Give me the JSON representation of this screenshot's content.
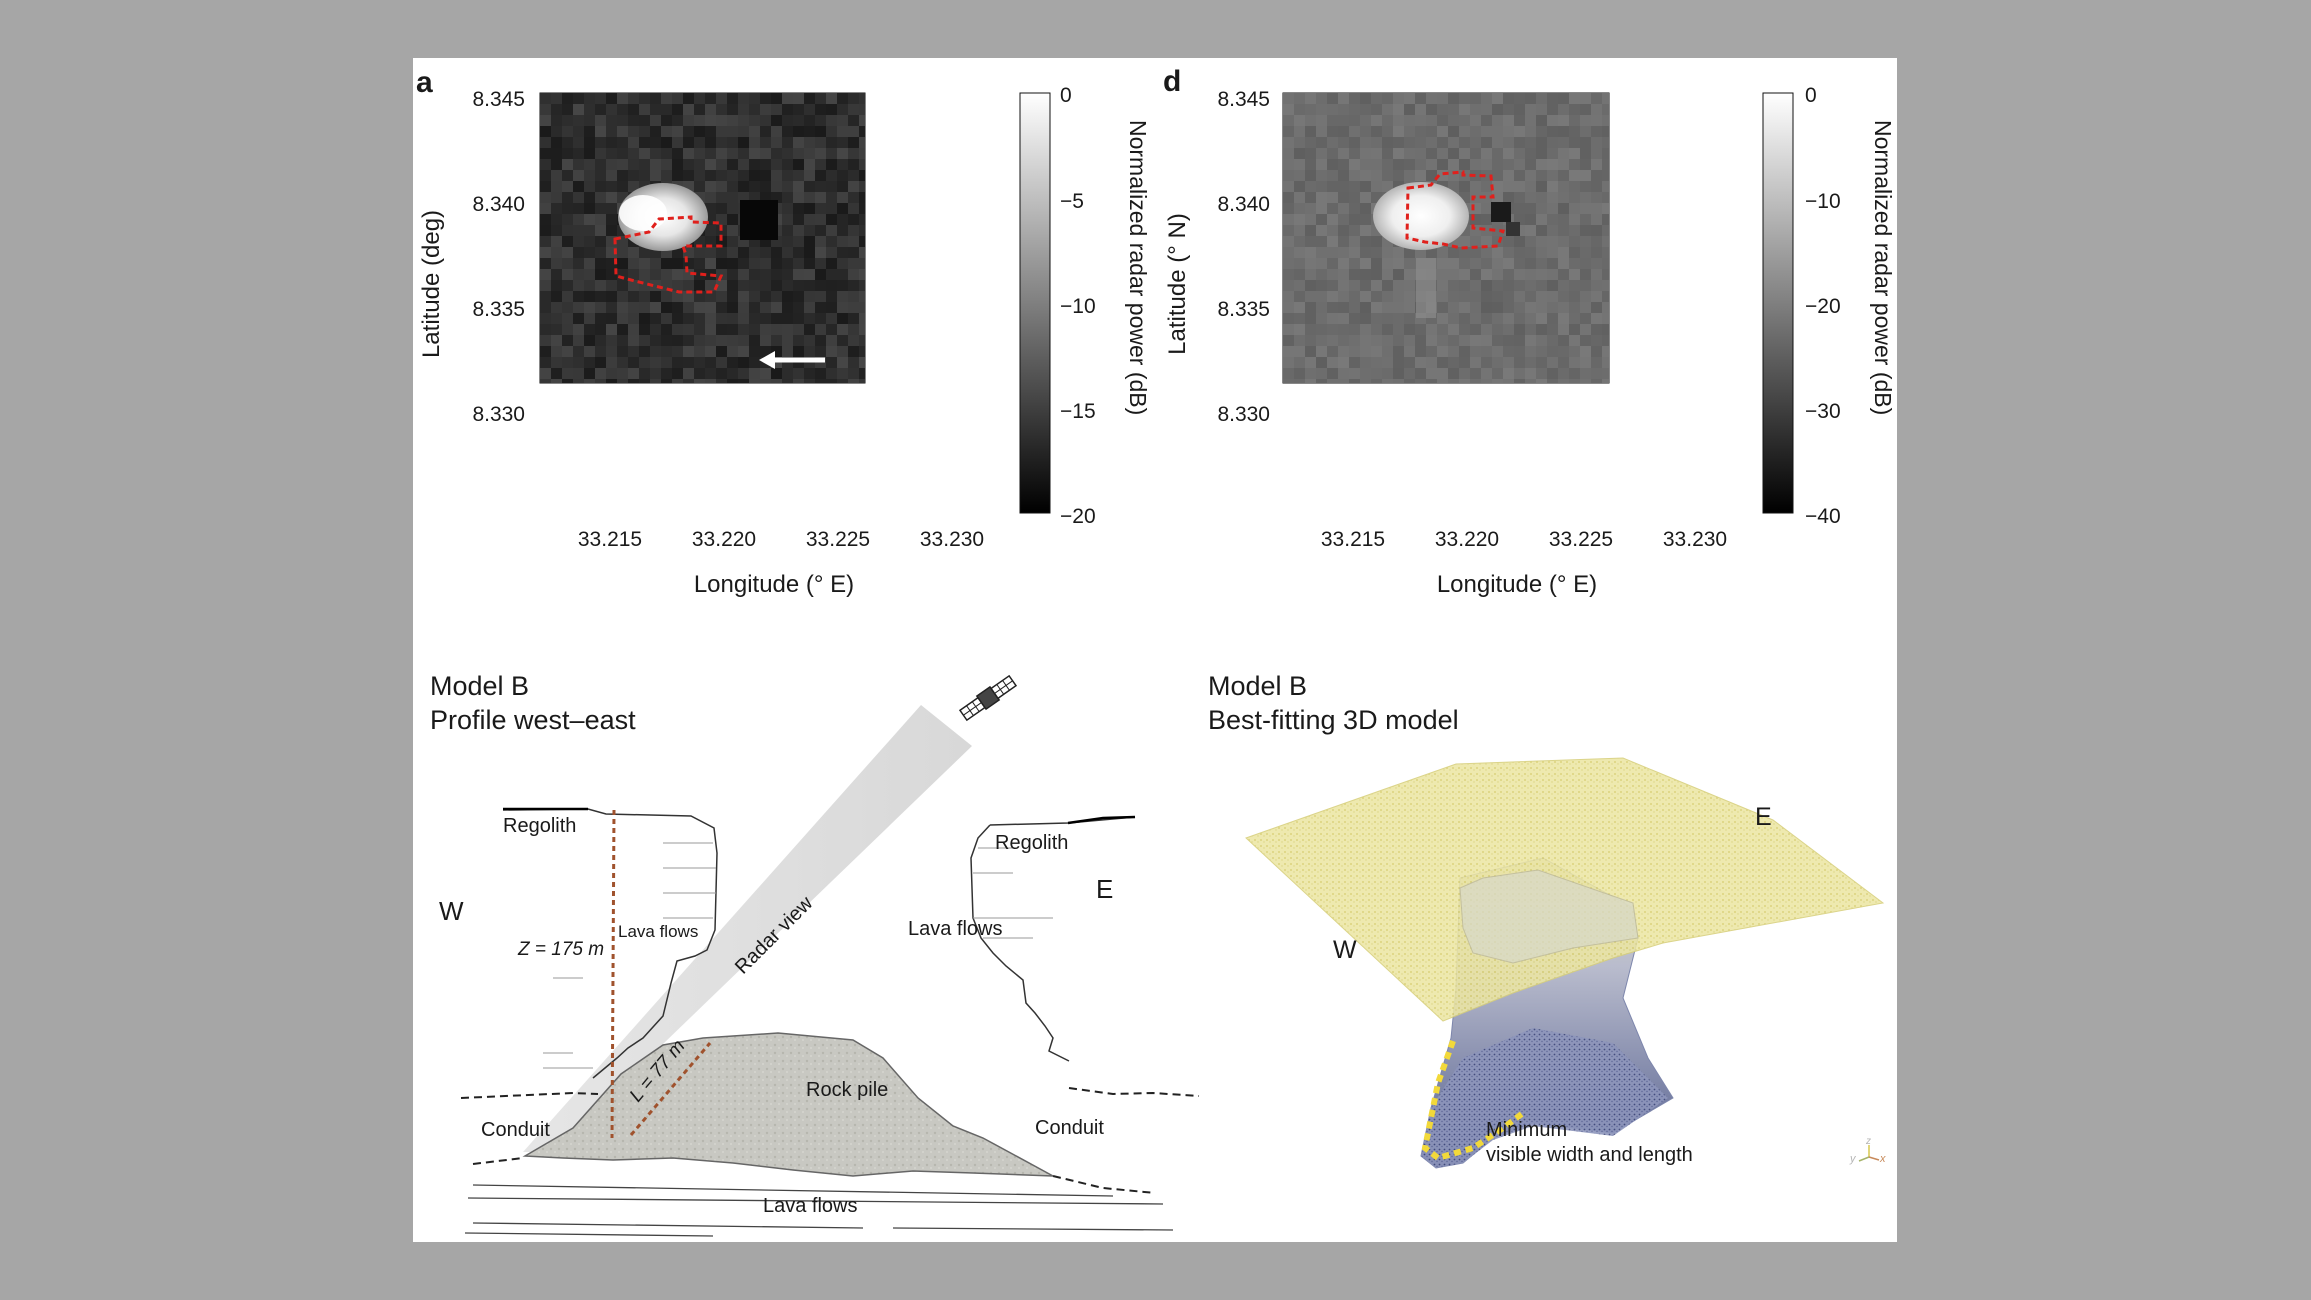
{
  "panel_a": {
    "label": "a",
    "ylabel": "Latitude (deg)",
    "xlabel": "Longitude (° E)",
    "colorbar_label": "Normalized radar power (dB)",
    "xticks": [
      "33.215",
      "33.220",
      "33.225",
      "33.230"
    ],
    "yticks": [
      "8.345",
      "8.340",
      "8.335",
      "8.330"
    ],
    "cbar_ticks": [
      "0",
      "−5",
      "−10",
      "−15",
      "−20"
    ]
  },
  "panel_d": {
    "label": "d",
    "ylabel": "Latitude (° N)",
    "xlabel": "Longitude (° E)",
    "colorbar_label": "Normalized radar power (dB)",
    "xticks": [
      "33.215",
      "33.220",
      "33.225",
      "33.230"
    ],
    "yticks": [
      "8.345",
      "8.340",
      "8.335",
      "8.330"
    ],
    "cbar_ticks": [
      "0",
      "−10",
      "−20",
      "−30",
      "−40"
    ]
  },
  "profile": {
    "title_line1": "Model B",
    "title_line2": "Profile west–east",
    "labels": {
      "regolith_left": "Regolith",
      "regolith_right": "Regolith",
      "west": "W",
      "east": "E",
      "depth": "Z = 175 m",
      "lava_left": "Lava flows",
      "lava_right": "Lava flows",
      "radar_view": "Radar view",
      "length": "L = 77 m",
      "rock_pile": "Rock pile",
      "conduit_left": "Conduit",
      "conduit_right": "Conduit",
      "lava_bottom": "Lava flows"
    }
  },
  "model3d": {
    "title_line1": "Model B",
    "title_line2": "Best-fitting 3D model",
    "east": "E",
    "west": "W",
    "note_line1": "Minimum",
    "note_line2": "visible width and length",
    "axis_y": "y",
    "axis_z": "z",
    "axis_x": "x"
  },
  "colors": {
    "outline_red": "#e0201c",
    "dashed_brown": "#a0522d",
    "rock_pile": "#c9c9c3",
    "surface_yellow": "#e8e08a",
    "conduit_blue": "#6a75a8",
    "yellow_dash": "#f2d93a"
  }
}
